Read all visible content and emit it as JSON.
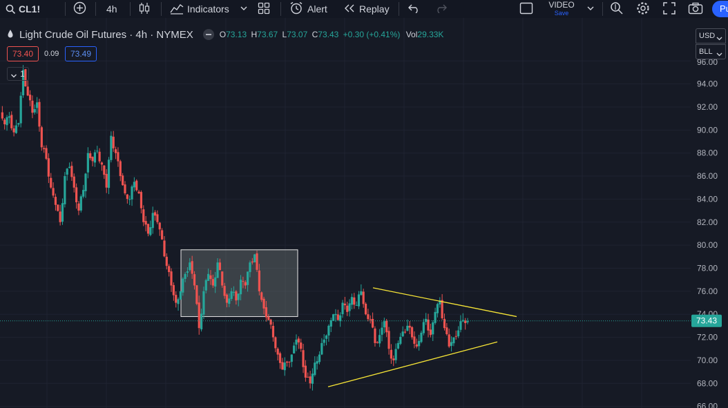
{
  "toolbar": {
    "symbol": "CL1!",
    "interval": "4h",
    "indicators_label": "Indicators",
    "alert_label": "Alert",
    "replay_label": "Replay",
    "video_label": "VIDEO",
    "video_sub": "Save",
    "publish_label": "Pu"
  },
  "legend": {
    "title": "Light Crude Oil Futures · 4h · NYMEX",
    "open_label": "O",
    "open": "73.13",
    "high_label": "H",
    "high": "73.67",
    "low_label": "L",
    "low": "73.07",
    "close_label": "C",
    "close": "73.43",
    "change": "+0.30 (+0.41%)",
    "vol_label": "Vol",
    "vol": "29.33K"
  },
  "quote": {
    "bid": "73.40",
    "spread": "0.09",
    "ask": "73.49"
  },
  "collapse": {
    "count": "1"
  },
  "currency": "USD",
  "unit": "BLL",
  "price_axis": {
    "ticks": [
      "94.00",
      "92.00",
      "90.00",
      "88.00",
      "86.00",
      "84.00",
      "82.00",
      "80.00",
      "78.00",
      "76.00",
      "74.00",
      "72.00",
      "70.00",
      "68.00",
      "66.00"
    ],
    "top_tick": "96.00",
    "current": "73.43"
  },
  "colors": {
    "up": "#26a69a",
    "down": "#ef5350",
    "trendline": "#f7e536",
    "background": "#161a25",
    "accent": "#2962ff",
    "current_price": "#26a69a"
  },
  "chart_data": {
    "type": "candlestick",
    "symbol": "CL1!",
    "timeframe": "4h",
    "ylim": [
      66,
      96
    ],
    "last_close": 73.43,
    "price_path": [
      91.5,
      90.5,
      91.2,
      89.8,
      90.6,
      95.2,
      93.0,
      91.5,
      92.4,
      88.5,
      87.5,
      85.0,
      83.5,
      82.0,
      86.0,
      86.8,
      85.0,
      83.0,
      84.8,
      88.0,
      87.3,
      88.2,
      87.0,
      85.0,
      89.5,
      88.0,
      86.0,
      84.5,
      84.0,
      85.5,
      84.5,
      82.0,
      81.0,
      82.8,
      82.0,
      80.5,
      78.2,
      76.5,
      75.0,
      76.0,
      77.5,
      78.5,
      76.5,
      72.8,
      76.0,
      77.5,
      76.5,
      78.5,
      76.5,
      75.0,
      76.0,
      75.2,
      77.0,
      76.5,
      78.5,
      79.2,
      76.0,
      74.5,
      73.5,
      72.0,
      70.5,
      69.2,
      69.8,
      70.5,
      71.8,
      71.0,
      68.5,
      68.0,
      69.8,
      70.5,
      71.8,
      73.0,
      74.0,
      73.5,
      75.0,
      74.2,
      75.5,
      74.8,
      76.0,
      74.0,
      73.5,
      71.5,
      72.2,
      73.4,
      71.0,
      70.0,
      71.5,
      72.5,
      73.0,
      72.0,
      71.2,
      72.4,
      73.6,
      72.2,
      74.2,
      75.2,
      72.8,
      71.2,
      72.0,
      72.6,
      73.5,
      73.4
    ],
    "trendlines": [
      {
        "role": "upper",
        "from": [
          540,
          76.3
        ],
        "to": [
          748,
          73.8
        ]
      },
      {
        "role": "lower",
        "from": [
          475,
          67.7
        ],
        "to": [
          720,
          71.6
        ]
      }
    ],
    "zones": [
      {
        "role": "consolidation",
        "from": [
          262,
          79.6
        ],
        "to": [
          431,
          73.8
        ]
      }
    ]
  }
}
